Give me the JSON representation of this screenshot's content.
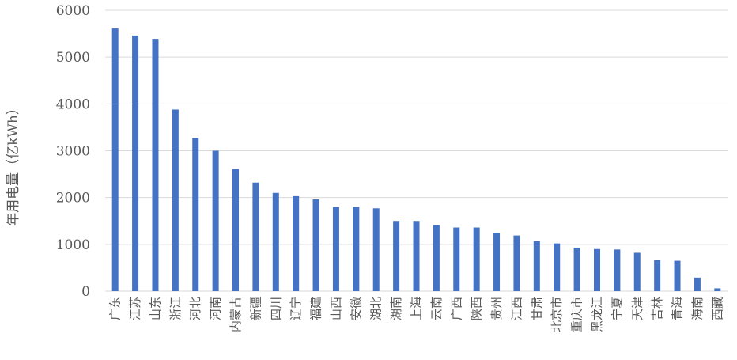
{
  "chart_data": {
    "type": "bar",
    "ylabel": "年用电量（亿kWh）",
    "ylim": [
      0,
      6000
    ],
    "yticks": [
      0,
      1000,
      2000,
      3000,
      4000,
      5000,
      6000
    ],
    "grid": true,
    "legend": "none",
    "bar_color": "#4472c4",
    "grid_color": "#d9d9d9",
    "categories": [
      "广东",
      "江苏",
      "山东",
      "浙江",
      "河北",
      "河南",
      "内蒙古",
      "新疆",
      "四川",
      "辽宁",
      "福建",
      "山西",
      "安徽",
      "湖北",
      "湖南",
      "上海",
      "云南",
      "广西",
      "陕西",
      "贵州",
      "江西",
      "甘肃",
      "北京市",
      "重庆市",
      "黑龙江",
      "宁夏",
      "天津",
      "吉林",
      "青海",
      "海南",
      "西藏"
    ],
    "values": [
      5610,
      5460,
      5390,
      3880,
      3270,
      3000,
      2610,
      2320,
      2100,
      2030,
      1960,
      1800,
      1800,
      1770,
      1500,
      1500,
      1410,
      1360,
      1360,
      1250,
      1190,
      1070,
      1020,
      930,
      900,
      890,
      820,
      670,
      650,
      290,
      60
    ]
  }
}
